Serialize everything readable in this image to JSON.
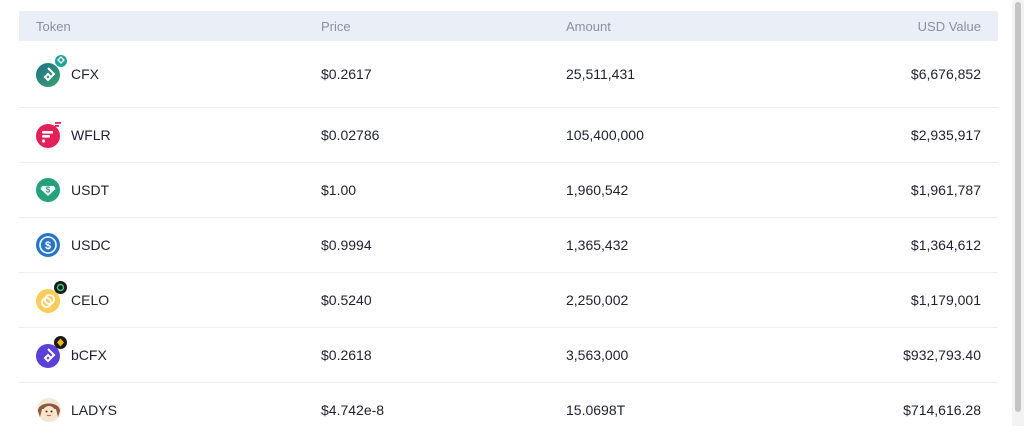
{
  "headers": {
    "token": "Token",
    "price": "Price",
    "amount": "Amount",
    "usd": "USD Value"
  },
  "rows": [
    {
      "token": "CFX",
      "price": "$0.2617",
      "amount": "25,511,431",
      "usd": "$6,676,852",
      "icon": "cfx-icon"
    },
    {
      "token": "WFLR",
      "price": "$0.02786",
      "amount": "105,400,000",
      "usd": "$2,935,917",
      "icon": "wflr-icon"
    },
    {
      "token": "USDT",
      "price": "$1.00",
      "amount": "1,960,542",
      "usd": "$1,961,787",
      "icon": "usdt-icon"
    },
    {
      "token": "USDC",
      "price": "$0.9994",
      "amount": "1,365,432",
      "usd": "$1,364,612",
      "icon": "usdc-icon"
    },
    {
      "token": "CELO",
      "price": "$0.5240",
      "amount": "2,250,002",
      "usd": "$1,179,001",
      "icon": "celo-icon"
    },
    {
      "token": "bCFX",
      "price": "$0.2618",
      "amount": "3,563,000",
      "usd": "$932,793.40",
      "icon": "bcfx-icon"
    },
    {
      "token": "LADYS",
      "price": "$4.742e-8",
      "amount": "15.0698T",
      "usd": "$714,616.28",
      "icon": "ladys-icon"
    }
  ],
  "colors": {
    "header_bg": "#eaeef6",
    "header_text": "#8a8fa3",
    "row_border": "#edeff4"
  }
}
